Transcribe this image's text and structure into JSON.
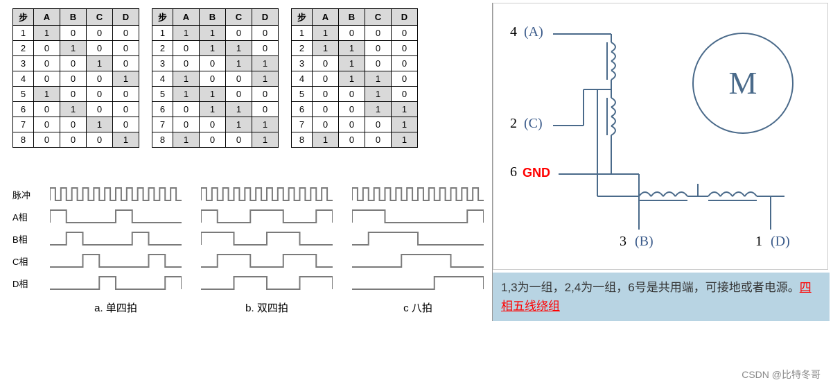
{
  "tables": {
    "headers": [
      "步",
      "A",
      "B",
      "C",
      "D"
    ],
    "t1": {
      "rows": [
        [
          "1",
          "1",
          "0",
          "0",
          "0"
        ],
        [
          "2",
          "0",
          "1",
          "0",
          "0"
        ],
        [
          "3",
          "0",
          "0",
          "1",
          "0"
        ],
        [
          "4",
          "0",
          "0",
          "0",
          "1"
        ],
        [
          "5",
          "1",
          "0",
          "0",
          "0"
        ],
        [
          "6",
          "0",
          "1",
          "0",
          "0"
        ],
        [
          "7",
          "0",
          "0",
          "1",
          "0"
        ],
        [
          "8",
          "0",
          "0",
          "0",
          "1"
        ]
      ],
      "hi": [
        [
          1
        ],
        [
          2
        ],
        [
          3
        ],
        [
          4
        ],
        [
          1
        ],
        [
          2
        ],
        [
          3
        ],
        [
          4
        ]
      ]
    },
    "t2": {
      "rows": [
        [
          "1",
          "1",
          "1",
          "0",
          "0"
        ],
        [
          "2",
          "0",
          "1",
          "1",
          "0"
        ],
        [
          "3",
          "0",
          "0",
          "1",
          "1"
        ],
        [
          "4",
          "1",
          "0",
          "0",
          "1"
        ],
        [
          "5",
          "1",
          "1",
          "0",
          "0"
        ],
        [
          "6",
          "0",
          "1",
          "1",
          "0"
        ],
        [
          "7",
          "0",
          "0",
          "1",
          "1"
        ],
        [
          "8",
          "1",
          "0",
          "0",
          "1"
        ]
      ],
      "hi": [
        [
          1,
          2
        ],
        [
          2,
          3
        ],
        [
          3,
          4
        ],
        [
          1,
          4
        ],
        [
          1,
          2
        ],
        [
          2,
          3
        ],
        [
          3,
          4
        ],
        [
          1,
          4
        ]
      ]
    },
    "t3": {
      "rows": [
        [
          "1",
          "1",
          "0",
          "0",
          "0"
        ],
        [
          "2",
          "1",
          "1",
          "0",
          "0"
        ],
        [
          "3",
          "0",
          "1",
          "0",
          "0"
        ],
        [
          "4",
          "0",
          "1",
          "1",
          "0"
        ],
        [
          "5",
          "0",
          "0",
          "1",
          "0"
        ],
        [
          "6",
          "0",
          "0",
          "1",
          "1"
        ],
        [
          "7",
          "0",
          "0",
          "0",
          "1"
        ],
        [
          "8",
          "1",
          "0",
          "0",
          "1"
        ]
      ],
      "hi": [
        [
          1
        ],
        [
          1,
          2
        ],
        [
          2
        ],
        [
          2,
          3
        ],
        [
          3
        ],
        [
          3,
          4
        ],
        [
          4
        ],
        [
          1,
          4
        ]
      ]
    }
  },
  "wave_labels": [
    "脉冲",
    "A相",
    "B相",
    "C相",
    "D相"
  ],
  "wave_captions": [
    "a. 单四拍",
    "b. 双四拍",
    "c 八拍"
  ],
  "wave_style": {
    "stroke": "#7a7a7a",
    "stroke_width": 2,
    "low": 20,
    "high": 2,
    "width_a": 190,
    "width_b": 190,
    "width_c": 190,
    "clock_width": 190
  },
  "circuit": {
    "labels": {
      "l4": "4",
      "lA": "(A)",
      "l2": "2",
      "lC": "(C)",
      "l6": "6",
      "gnd": "GND",
      "l3": "3",
      "lB": "(B)",
      "l1": "1",
      "lD": "(D)",
      "motor": "M"
    },
    "colors": {
      "wire": "#4a6a8a",
      "label": "#3a5a8a",
      "gnd": "#ff0000",
      "motor_stroke": "#4a6a8a"
    },
    "stroke_width": 2
  },
  "description": {
    "text_before": "1,3为一组，2,4为一组，6号是共用端，可接地或者电源。",
    "link_text": "四相五线绕组",
    "bg": "#b8d4e3",
    "link_color": "#ff0000"
  },
  "watermark": "CSDN @比特冬哥"
}
